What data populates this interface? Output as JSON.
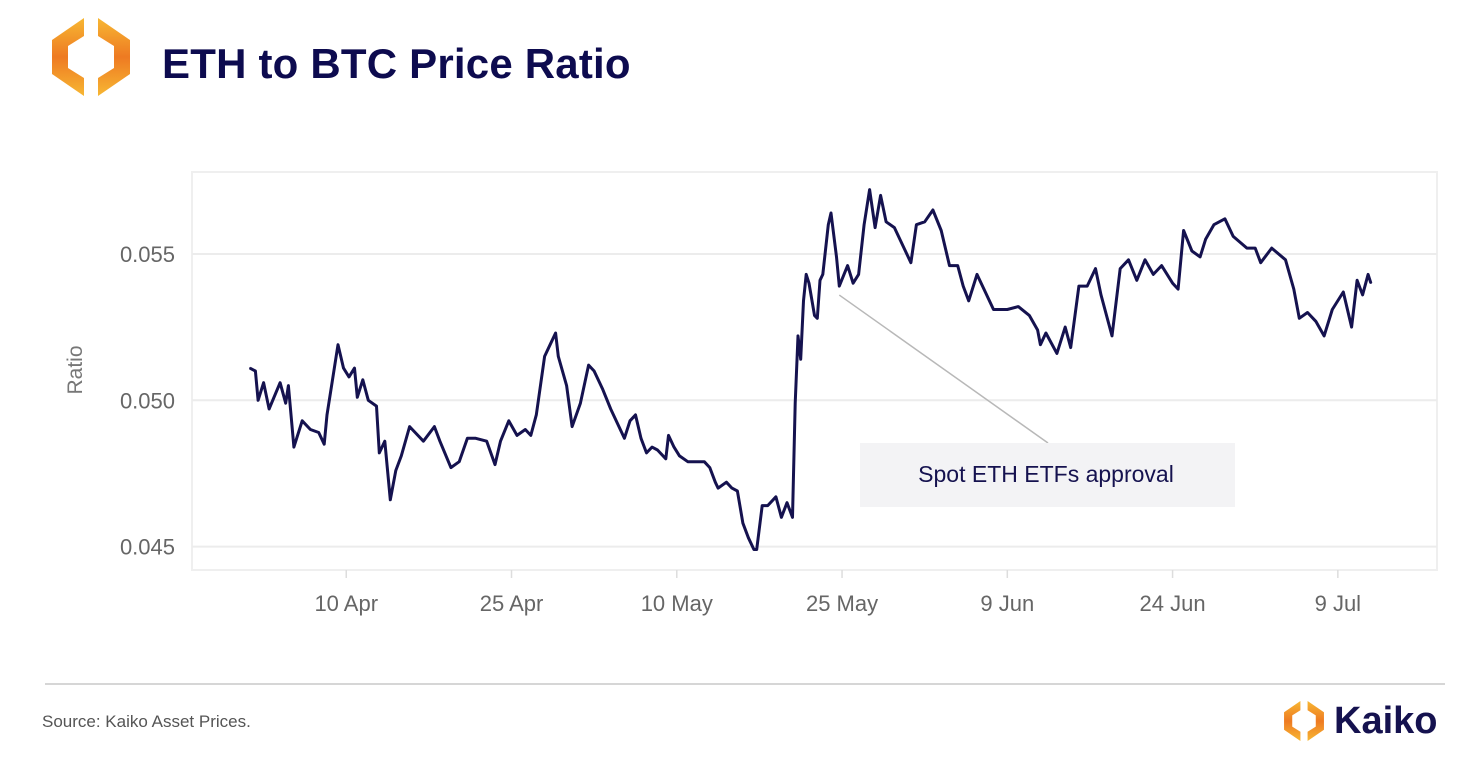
{
  "header": {
    "title": "ETH to BTC Price Ratio",
    "logo": "kaiko-hexagon-logo"
  },
  "footer": {
    "source": "Source: Kaiko Asset Prices.",
    "brand": "Kaiko"
  },
  "colors": {
    "line": "#15124f",
    "title": "#0d0b4f",
    "logo_orange": "#f08a24",
    "logo_yellow": "#f7b733",
    "grid": "#ececec",
    "annotation_bg": "#f3f3f5"
  },
  "chart_data": {
    "type": "line",
    "title": "",
    "xlabel": "",
    "ylabel": "Ratio",
    "xlim": [
      "2024-03-27",
      "2024-07-18"
    ],
    "ylim": [
      0.0442,
      0.0578
    ],
    "grid": {
      "horizontal": true,
      "vertical": false
    },
    "legend": "none",
    "y_ticks": [
      {
        "value": 0.045,
        "label": "0.045"
      },
      {
        "value": 0.05,
        "label": "0.050"
      },
      {
        "value": 0.055,
        "label": "0.055"
      }
    ],
    "x_ticks": [
      {
        "value": "2024-04-10",
        "label": "10 Apr"
      },
      {
        "value": "2024-04-25",
        "label": "25 Apr"
      },
      {
        "value": "2024-05-10",
        "label": "10 May"
      },
      {
        "value": "2024-05-25",
        "label": "25 May"
      },
      {
        "value": "2024-06-09",
        "label": "9 Jun"
      },
      {
        "value": "2024-06-24",
        "label": "24 Jun"
      },
      {
        "value": "2024-07-09",
        "label": "9 Jul"
      }
    ],
    "annotation": {
      "text": "Spot ETH ETFs approval",
      "x": "2024-05-24T18:00",
      "y": 0.0538
    },
    "series": [
      {
        "points": [
          [
            "2024-04-01T06:00",
            0.0511
          ],
          [
            "2024-04-01T18:00",
            0.051
          ],
          [
            "2024-04-02T00:00",
            0.05
          ],
          [
            "2024-04-02T12:00",
            0.0506
          ],
          [
            "2024-04-03T00:00",
            0.0497
          ],
          [
            "2024-04-04T00:00",
            0.0506
          ],
          [
            "2024-04-04T12:00",
            0.0499
          ],
          [
            "2024-04-04T18:00",
            0.0505
          ],
          [
            "2024-04-05T06:00",
            0.0484
          ],
          [
            "2024-04-06T00:00",
            0.0493
          ],
          [
            "2024-04-06T18:00",
            0.049
          ],
          [
            "2024-04-07T12:00",
            0.0489
          ],
          [
            "2024-04-08T00:00",
            0.0485
          ],
          [
            "2024-04-08T06:00",
            0.0495
          ],
          [
            "2024-04-09T06:00",
            0.0519
          ],
          [
            "2024-04-09T18:00",
            0.0511
          ],
          [
            "2024-04-10T06:00",
            0.0508
          ],
          [
            "2024-04-10T18:00",
            0.0511
          ],
          [
            "2024-04-11T00:00",
            0.0501
          ],
          [
            "2024-04-11T12:00",
            0.0507
          ],
          [
            "2024-04-12T00:00",
            0.05
          ],
          [
            "2024-04-12T18:00",
            0.0498
          ],
          [
            "2024-04-13T00:00",
            0.0482
          ],
          [
            "2024-04-13T12:00",
            0.0486
          ],
          [
            "2024-04-14T00:00",
            0.0466
          ],
          [
            "2024-04-14T12:00",
            0.0476
          ],
          [
            "2024-04-15T00:00",
            0.0481
          ],
          [
            "2024-04-15T18:00",
            0.0491
          ],
          [
            "2024-04-16T12:00",
            0.0488
          ],
          [
            "2024-04-17T00:00",
            0.0486
          ],
          [
            "2024-04-18T00:00",
            0.0491
          ],
          [
            "2024-04-18T12:00",
            0.0486
          ],
          [
            "2024-04-19T12:00",
            0.0477
          ],
          [
            "2024-04-20T06:00",
            0.0479
          ],
          [
            "2024-04-21T00:00",
            0.0487
          ],
          [
            "2024-04-21T18:00",
            0.0487
          ],
          [
            "2024-04-22T18:00",
            0.0486
          ],
          [
            "2024-04-23T12:00",
            0.0478
          ],
          [
            "2024-04-24T00:00",
            0.0486
          ],
          [
            "2024-04-24T18:00",
            0.0493
          ],
          [
            "2024-04-25T12:00",
            0.0488
          ],
          [
            "2024-04-26T06:00",
            0.049
          ],
          [
            "2024-04-26T18:00",
            0.0488
          ],
          [
            "2024-04-27T06:00",
            0.0495
          ],
          [
            "2024-04-28T00:00",
            0.0515
          ],
          [
            "2024-04-28T12:00",
            0.0519
          ],
          [
            "2024-04-29T00:00",
            0.0523
          ],
          [
            "2024-04-29T06:00",
            0.0515
          ],
          [
            "2024-04-30T00:00",
            0.0505
          ],
          [
            "2024-04-30T12:00",
            0.0491
          ],
          [
            "2024-05-01T06:00",
            0.0499
          ],
          [
            "2024-05-02T00:00",
            0.0512
          ],
          [
            "2024-05-02T12:00",
            0.051
          ],
          [
            "2024-05-03T06:00",
            0.0504
          ],
          [
            "2024-05-04T00:00",
            0.0497
          ],
          [
            "2024-05-04T12:00",
            0.0493
          ],
          [
            "2024-05-05T06:00",
            0.0487
          ],
          [
            "2024-05-05T18:00",
            0.0493
          ],
          [
            "2024-05-06T06:00",
            0.0495
          ],
          [
            "2024-05-06T18:00",
            0.0487
          ],
          [
            "2024-05-07T06:00",
            0.0482
          ],
          [
            "2024-05-07T18:00",
            0.0484
          ],
          [
            "2024-05-08T06:00",
            0.0483
          ],
          [
            "2024-05-09T00:00",
            0.048
          ],
          [
            "2024-05-09T06:00",
            0.0488
          ],
          [
            "2024-05-09T18:00",
            0.0484
          ],
          [
            "2024-05-10T06:00",
            0.0481
          ],
          [
            "2024-05-11T00:00",
            0.0479
          ],
          [
            "2024-05-11T12:00",
            0.0479
          ],
          [
            "2024-05-12T12:00",
            0.0479
          ],
          [
            "2024-05-13T00:00",
            0.0477
          ],
          [
            "2024-05-13T12:00",
            0.0472
          ],
          [
            "2024-05-13T18:00",
            0.047
          ],
          [
            "2024-05-14T12:00",
            0.0472
          ],
          [
            "2024-05-15T00:00",
            0.047
          ],
          [
            "2024-05-15T12:00",
            0.0469
          ],
          [
            "2024-05-16T00:00",
            0.0458
          ],
          [
            "2024-05-16T12:00",
            0.0453
          ],
          [
            "2024-05-17T00:00",
            0.0449
          ],
          [
            "2024-05-17T06:00",
            0.0449
          ],
          [
            "2024-05-17T18:00",
            0.0464
          ],
          [
            "2024-05-18T06:00",
            0.0464
          ],
          [
            "2024-05-19T00:00",
            0.0467
          ],
          [
            "2024-05-19T12:00",
            0.046
          ],
          [
            "2024-05-20T00:00",
            0.0465
          ],
          [
            "2024-05-20T12:00",
            0.046
          ],
          [
            "2024-05-20T18:00",
            0.0499
          ],
          [
            "2024-05-21T00:00",
            0.0522
          ],
          [
            "2024-05-21T06:00",
            0.0514
          ],
          [
            "2024-05-21T12:00",
            0.0534
          ],
          [
            "2024-05-21T18:00",
            0.0543
          ],
          [
            "2024-05-22T00:00",
            0.054
          ],
          [
            "2024-05-22T12:00",
            0.0529
          ],
          [
            "2024-05-22T18:00",
            0.0528
          ],
          [
            "2024-05-23T00:00",
            0.0541
          ],
          [
            "2024-05-23T06:00",
            0.0543
          ],
          [
            "2024-05-23T18:00",
            0.056
          ],
          [
            "2024-05-24T00:00",
            0.0564
          ],
          [
            "2024-05-24T12:00",
            0.0549
          ],
          [
            "2024-05-24T18:00",
            0.0539
          ],
          [
            "2024-05-25T12:00",
            0.0546
          ],
          [
            "2024-05-26T00:00",
            0.054
          ],
          [
            "2024-05-26T12:00",
            0.0543
          ],
          [
            "2024-05-27T00:00",
            0.056
          ],
          [
            "2024-05-27T12:00",
            0.0572
          ],
          [
            "2024-05-28T00:00",
            0.0559
          ],
          [
            "2024-05-28T12:00",
            0.057
          ],
          [
            "2024-05-29T00:00",
            0.0561
          ],
          [
            "2024-05-29T18:00",
            0.0559
          ],
          [
            "2024-05-30T18:00",
            0.0551
          ],
          [
            "2024-05-31T06:00",
            0.0547
          ],
          [
            "2024-05-31T18:00",
            0.056
          ],
          [
            "2024-06-01T12:00",
            0.0561
          ],
          [
            "2024-06-02T06:00",
            0.0565
          ],
          [
            "2024-06-03T00:00",
            0.0558
          ],
          [
            "2024-06-03T18:00",
            0.0546
          ],
          [
            "2024-06-04T12:00",
            0.0546
          ],
          [
            "2024-06-05T00:00",
            0.0539
          ],
          [
            "2024-06-05T12:00",
            0.0534
          ],
          [
            "2024-06-06T06:00",
            0.0543
          ],
          [
            "2024-06-07T00:00",
            0.0537
          ],
          [
            "2024-06-07T18:00",
            0.0531
          ],
          [
            "2024-06-09T00:00",
            0.0531
          ],
          [
            "2024-06-10T00:00",
            0.0532
          ],
          [
            "2024-06-11T00:00",
            0.0529
          ],
          [
            "2024-06-11T18:00",
            0.0524
          ],
          [
            "2024-06-12T00:00",
            0.0519
          ],
          [
            "2024-06-12T12:00",
            0.0523
          ],
          [
            "2024-06-13T12:00",
            0.0516
          ],
          [
            "2024-06-14T06:00",
            0.0525
          ],
          [
            "2024-06-14T18:00",
            0.0518
          ],
          [
            "2024-06-15T12:00",
            0.0539
          ],
          [
            "2024-06-16T06:00",
            0.0539
          ],
          [
            "2024-06-17T00:00",
            0.0545
          ],
          [
            "2024-06-17T12:00",
            0.0536
          ],
          [
            "2024-06-18T12:00",
            0.0522
          ],
          [
            "2024-06-19T06:00",
            0.0545
          ],
          [
            "2024-06-20T00:00",
            0.0548
          ],
          [
            "2024-06-20T18:00",
            0.0541
          ],
          [
            "2024-06-21T12:00",
            0.0548
          ],
          [
            "2024-06-22T06:00",
            0.0543
          ],
          [
            "2024-06-23T00:00",
            0.0546
          ],
          [
            "2024-06-24T00:00",
            0.054
          ],
          [
            "2024-06-24T12:00",
            0.0538
          ],
          [
            "2024-06-25T00:00",
            0.0558
          ],
          [
            "2024-06-25T18:00",
            0.0551
          ],
          [
            "2024-06-26T12:00",
            0.0549
          ],
          [
            "2024-06-27T00:00",
            0.0555
          ],
          [
            "2024-06-27T18:00",
            0.056
          ],
          [
            "2024-06-28T18:00",
            0.0562
          ],
          [
            "2024-06-29T12:00",
            0.0556
          ],
          [
            "2024-06-30T18:00",
            0.0552
          ],
          [
            "2024-07-01T12:00",
            0.0552
          ],
          [
            "2024-07-02T00:00",
            0.0547
          ],
          [
            "2024-07-03T00:00",
            0.0552
          ],
          [
            "2024-07-04T06:00",
            0.0548
          ],
          [
            "2024-07-05T00:00",
            0.0538
          ],
          [
            "2024-07-05T12:00",
            0.0528
          ],
          [
            "2024-07-06T06:00",
            0.053
          ],
          [
            "2024-07-07T00:00",
            0.0527
          ],
          [
            "2024-07-07T18:00",
            0.0522
          ],
          [
            "2024-07-08T12:00",
            0.0531
          ],
          [
            "2024-07-09T12:00",
            0.0537
          ],
          [
            "2024-07-10T06:00",
            0.0525
          ],
          [
            "2024-07-10T18:00",
            0.0541
          ],
          [
            "2024-07-11T06:00",
            0.0536
          ],
          [
            "2024-07-11T18:00",
            0.0543
          ],
          [
            "2024-07-12T00:00",
            0.054
          ]
        ]
      }
    ]
  }
}
